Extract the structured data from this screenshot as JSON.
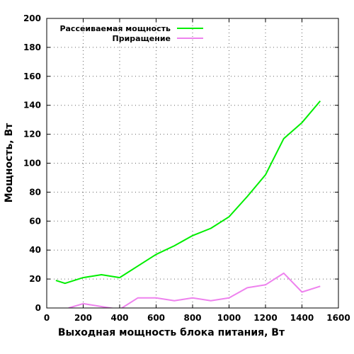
{
  "chart_data": {
    "type": "line",
    "title": "",
    "xlabel": "Выходная мощность блока питания, Вт",
    "ylabel": "Мощность, Вт",
    "xlim": [
      0,
      1600
    ],
    "ylim": [
      0,
      200
    ],
    "xticks": [
      0,
      200,
      400,
      600,
      800,
      1000,
      1200,
      1400,
      1600
    ],
    "yticks": [
      0,
      20,
      40,
      60,
      80,
      100,
      120,
      140,
      160,
      180,
      200
    ],
    "grid": true,
    "legend_position": "top-left",
    "series": [
      {
        "name": "Рассеиваемая мощность",
        "color": "#00ee00",
        "x": [
          50,
          100,
          200,
          300,
          400,
          500,
          600,
          700,
          800,
          900,
          1000,
          1100,
          1200,
          1300,
          1400,
          1500
        ],
        "y": [
          19,
          17,
          21,
          23,
          21,
          29,
          37,
          43,
          50,
          55,
          63,
          77,
          92,
          117,
          128,
          143
        ]
      },
      {
        "name": "Приращение",
        "color": "#ee82ee",
        "x": [
          120,
          200,
          300,
          400,
          500,
          600,
          700,
          800,
          900,
          1000,
          1100,
          1200,
          1300,
          1400,
          1500
        ],
        "y": [
          0,
          3,
          1,
          -1,
          7,
          7,
          5,
          7,
          5,
          7,
          14,
          16,
          24,
          11,
          15
        ]
      }
    ]
  }
}
